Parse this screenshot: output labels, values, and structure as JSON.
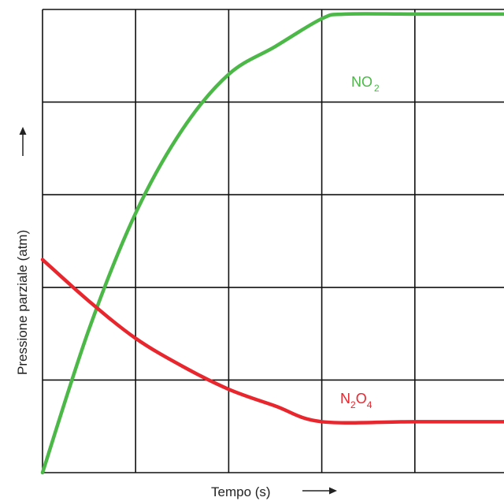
{
  "chart_data": {
    "type": "line",
    "title": "",
    "xlabel": "Tempo (s)",
    "ylabel": "Pressione parziale (atm)",
    "xlim": [
      0,
      5
    ],
    "ylim": [
      0,
      5
    ],
    "grid": true,
    "series": [
      {
        "name": "NO2",
        "label_main": "NO",
        "label_sub": "2",
        "color": "#4cb848",
        "points": [
          [
            0,
            0
          ],
          [
            0.5,
            1.55
          ],
          [
            1,
            2.8
          ],
          [
            1.5,
            3.7
          ],
          [
            2,
            4.3
          ],
          [
            2.5,
            4.6
          ],
          [
            3,
            4.9
          ],
          [
            3.25,
            4.95
          ],
          [
            4,
            4.95
          ],
          [
            5,
            4.95
          ]
        ]
      },
      {
        "name": "N2O4",
        "label_main": [
          "N",
          "O"
        ],
        "label_sub": [
          "2",
          "4"
        ],
        "color": "#e8262e",
        "points": [
          [
            0,
            2.3
          ],
          [
            0.5,
            1.85
          ],
          [
            1,
            1.45
          ],
          [
            1.5,
            1.15
          ],
          [
            2,
            0.9
          ],
          [
            2.5,
            0.72
          ],
          [
            3,
            0.55
          ],
          [
            4,
            0.55
          ],
          [
            5,
            0.55
          ]
        ]
      }
    ]
  }
}
